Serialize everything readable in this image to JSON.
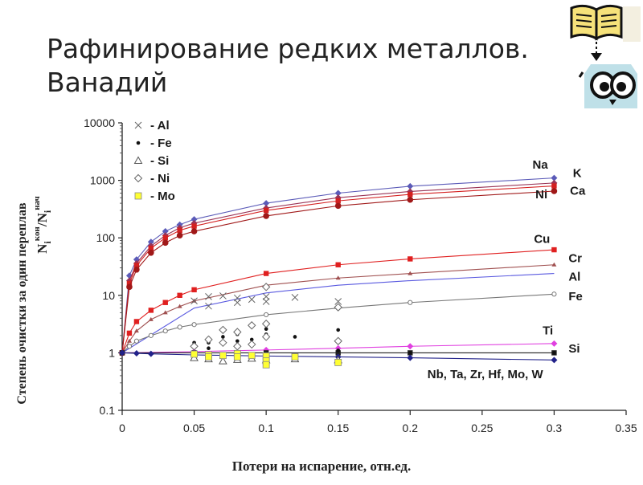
{
  "slide": {
    "title_line1": "Рафинирование редких металлов.",
    "title_line2": "Ванадий"
  },
  "logo": {
    "icon": "book-and-owl-icon",
    "book_color": "#f6e27a",
    "owl_color": "#bfe0e8"
  },
  "chart_data": {
    "type": "line",
    "title": "",
    "xlabel": "Потери на испарение, отн.ед.",
    "ylabel_text": "Степень очистки за один переплав",
    "ylabel_formula": {
      "n1": "N",
      "sub1": "i",
      "sup1": "кон",
      "slash": "/",
      "n2": "N",
      "sub2": "i",
      "sup2": "нач"
    },
    "yscale": "log",
    "xlim": [
      0,
      0.35
    ],
    "ylim": [
      0.1,
      10000
    ],
    "xticks": [
      0,
      0.05,
      0.1,
      0.15,
      0.2,
      0.25,
      0.3,
      0.35
    ],
    "xtick_labels": [
      "0",
      "0.05",
      "0.1",
      "0.15",
      "0.2",
      "0.25",
      "0.3",
      "0.35"
    ],
    "yticks": [
      0.1,
      1,
      10,
      100,
      1000,
      10000
    ],
    "ytick_labels": [
      "0.1",
      "1",
      "10",
      "100",
      "1000",
      "10000"
    ],
    "grid": false,
    "legend_position": "top-left",
    "legend": [
      {
        "marker": "x",
        "label": "Al"
      },
      {
        "marker": "dot",
        "label": "Fe"
      },
      {
        "marker": "triangle",
        "label": "Si"
      },
      {
        "marker": "diamond",
        "label": "Ni"
      },
      {
        "marker": "yellow-square",
        "label": "Mo"
      }
    ],
    "series": [
      {
        "name": "K",
        "color": "#5b5bb8",
        "marker": "diamond",
        "x": [
          0,
          0.005,
          0.01,
          0.02,
          0.03,
          0.04,
          0.05,
          0.1,
          0.15,
          0.2,
          0.3
        ],
        "y": [
          1,
          22,
          42,
          85,
          130,
          170,
          210,
          400,
          600,
          790,
          1100
        ]
      },
      {
        "name": "Na",
        "color": "#993355",
        "marker": "diamond",
        "x": [
          0,
          0.005,
          0.01,
          0.02,
          0.03,
          0.04,
          0.05,
          0.1,
          0.15,
          0.2,
          0.3
        ],
        "y": [
          1,
          18,
          36,
          72,
          110,
          150,
          180,
          330,
          500,
          640,
          900
        ]
      },
      {
        "name": "Ca",
        "color": "#d42020",
        "marker": "square",
        "x": [
          0,
          0.005,
          0.01,
          0.02,
          0.03,
          0.04,
          0.05,
          0.1,
          0.15,
          0.2,
          0.3
        ],
        "y": [
          1,
          16,
          33,
          66,
          100,
          135,
          160,
          300,
          440,
          570,
          800
        ]
      },
      {
        "name": "Ni",
        "color": "#a01818",
        "marker": "circle",
        "x": [
          0,
          0.005,
          0.01,
          0.02,
          0.03,
          0.04,
          0.05,
          0.1,
          0.15,
          0.2,
          0.3
        ],
        "y": [
          1,
          14,
          28,
          55,
          82,
          110,
          130,
          240,
          360,
          460,
          650
        ]
      },
      {
        "name": "Cu",
        "color": "#e02020",
        "marker": "square",
        "x": [
          0,
          0.005,
          0.01,
          0.02,
          0.03,
          0.04,
          0.05,
          0.1,
          0.15,
          0.2,
          0.3
        ],
        "y": [
          1,
          2.2,
          3.5,
          5.5,
          7.5,
          10,
          12.5,
          24,
          34,
          43,
          62
        ]
      },
      {
        "name": "Cr",
        "color": "#a05050",
        "marker": "triangle",
        "x": [
          0,
          0.005,
          0.01,
          0.02,
          0.03,
          0.04,
          0.05,
          0.1,
          0.15,
          0.2,
          0.3
        ],
        "y": [
          1,
          1.6,
          2.4,
          3.8,
          5,
          6.4,
          8,
          15,
          20,
          24,
          34
        ]
      },
      {
        "name": "Al",
        "color": "#5a5ae0",
        "marker": "none",
        "x": [
          0,
          0.05,
          0.1,
          0.15,
          0.2,
          0.3
        ],
        "y": [
          1,
          6,
          11,
          15,
          18,
          24
        ]
      },
      {
        "name": "Fe",
        "color": "#777777",
        "marker": "open-circle",
        "x": [
          0,
          0.005,
          0.01,
          0.02,
          0.03,
          0.04,
          0.05,
          0.1,
          0.15,
          0.2,
          0.3
        ],
        "y": [
          1,
          1.3,
          1.6,
          2,
          2.4,
          2.8,
          3.1,
          4.6,
          6,
          7.5,
          10.5
        ]
      },
      {
        "name": "Ti",
        "color": "#e040e0",
        "marker": "diamond",
        "x": [
          0,
          0.05,
          0.1,
          0.15,
          0.2,
          0.3
        ],
        "y": [
          1,
          1.05,
          1.12,
          1.2,
          1.3,
          1.45
        ]
      },
      {
        "name": "Si",
        "color": "#222222",
        "marker": "square",
        "x": [
          0,
          0.05,
          0.1,
          0.15,
          0.2,
          0.3
        ],
        "y": [
          1,
          1,
          1,
          1,
          1,
          1
        ]
      },
      {
        "name": "Nb, Ta, Zr, Hf, Mo, W",
        "color": "#22228a",
        "marker": "diamond",
        "x": [
          0,
          0.01,
          0.02,
          0.05,
          0.1,
          0.15,
          0.2,
          0.3
        ],
        "y": [
          1,
          0.98,
          0.96,
          0.92,
          0.88,
          0.85,
          0.82,
          0.75
        ]
      }
    ],
    "series_labels": [
      {
        "text": "Na",
        "x": 0.285,
        "y": 1600
      },
      {
        "text": "K",
        "x": 0.313,
        "y": 1150
      },
      {
        "text": "Ni",
        "x": 0.287,
        "y": 490
      },
      {
        "text": "Ca",
        "x": 0.311,
        "y": 560
      },
      {
        "text": "Cu",
        "x": 0.286,
        "y": 82
      },
      {
        "text": "Cr",
        "x": 0.31,
        "y": 38
      },
      {
        "text": "Al",
        "x": 0.31,
        "y": 18
      },
      {
        "text": "Fe",
        "x": 0.31,
        "y": 8.2
      },
      {
        "text": "Ti",
        "x": 0.292,
        "y": 2.1
      },
      {
        "text": "Si",
        "x": 0.31,
        "y": 1.02
      },
      {
        "text": "Nb, Ta, Zr, Hf, Mo, W",
        "x": 0.212,
        "y": 0.36
      }
    ],
    "scatter_series": [
      {
        "name": "Al",
        "marker": "x",
        "points": [
          [
            0.05,
            8
          ],
          [
            0.06,
            6.5
          ],
          [
            0.06,
            9.5
          ],
          [
            0.07,
            9.8
          ],
          [
            0.08,
            9
          ],
          [
            0.08,
            7.5
          ],
          [
            0.09,
            8.5
          ],
          [
            0.1,
            9.5
          ],
          [
            0.1,
            7.8
          ],
          [
            0.12,
            9.2
          ],
          [
            0.15,
            7.8
          ]
        ]
      },
      {
        "name": "Fe",
        "marker": "dot",
        "points": [
          [
            0.05,
            1.5
          ],
          [
            0.06,
            1.5
          ],
          [
            0.06,
            1.2
          ],
          [
            0.07,
            1.9
          ],
          [
            0.07,
            1.5
          ],
          [
            0.08,
            1.6
          ],
          [
            0.08,
            2.1
          ],
          [
            0.09,
            1.7
          ],
          [
            0.1,
            2.6
          ],
          [
            0.1,
            2.1
          ],
          [
            0.1,
            1.8
          ],
          [
            0.12,
            1.9
          ],
          [
            0.15,
            2.5
          ],
          [
            0.15,
            1.1
          ],
          [
            0.2,
            1
          ],
          [
            0.3,
            1
          ]
        ]
      },
      {
        "name": "Si",
        "marker": "triangle",
        "points": [
          [
            0.05,
            0.82
          ],
          [
            0.06,
            0.78
          ],
          [
            0.07,
            0.72
          ],
          [
            0.08,
            0.76
          ],
          [
            0.09,
            0.8
          ],
          [
            0.1,
            0.75
          ],
          [
            0.12,
            0.78
          ],
          [
            0.15,
            0.75
          ]
        ]
      },
      {
        "name": "Ni",
        "marker": "diamond",
        "points": [
          [
            0.05,
            1.3
          ],
          [
            0.06,
            1.7
          ],
          [
            0.07,
            2.5
          ],
          [
            0.07,
            1.5
          ],
          [
            0.08,
            2.3
          ],
          [
            0.08,
            1.3
          ],
          [
            0.09,
            1.4
          ],
          [
            0.09,
            3
          ],
          [
            0.1,
            1.9
          ],
          [
            0.1,
            3.2
          ],
          [
            0.1,
            14
          ],
          [
            0.15,
            1.6
          ],
          [
            0.15,
            6.2
          ]
        ]
      },
      {
        "name": "Mo",
        "marker": "yellow-square",
        "points": [
          [
            0.05,
            0.95
          ],
          [
            0.06,
            0.92
          ],
          [
            0.06,
            0.85
          ],
          [
            0.07,
            0.9
          ],
          [
            0.08,
            0.97
          ],
          [
            0.08,
            0.85
          ],
          [
            0.09,
            0.9
          ],
          [
            0.1,
            0.88
          ],
          [
            0.1,
            0.72
          ],
          [
            0.1,
            0.62
          ],
          [
            0.12,
            0.85
          ],
          [
            0.15,
            0.68
          ]
        ]
      }
    ]
  }
}
